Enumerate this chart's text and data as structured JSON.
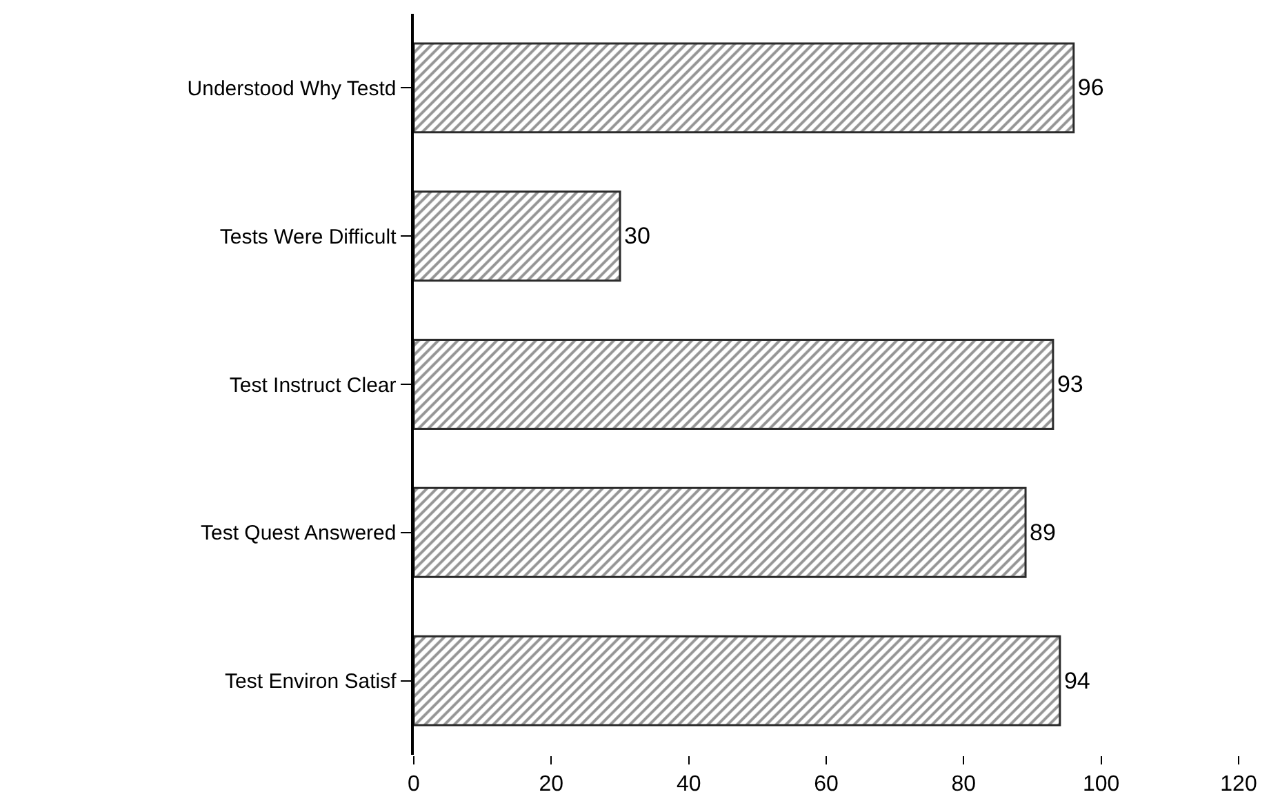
{
  "chart_data": {
    "type": "bar",
    "orientation": "horizontal",
    "categories": [
      "Understood Why Testd",
      "Tests Were Difficult",
      "Test Instruct Clear",
      "Test Quest Answered",
      "Test Environ Satisf"
    ],
    "values": [
      96,
      30,
      93,
      89,
      94
    ],
    "color": "#2b2b2b",
    "xlim": [
      0,
      120
    ],
    "xticks": [
      0,
      20,
      40,
      60,
      80,
      100,
      120
    ],
    "data_labels": true
  }
}
